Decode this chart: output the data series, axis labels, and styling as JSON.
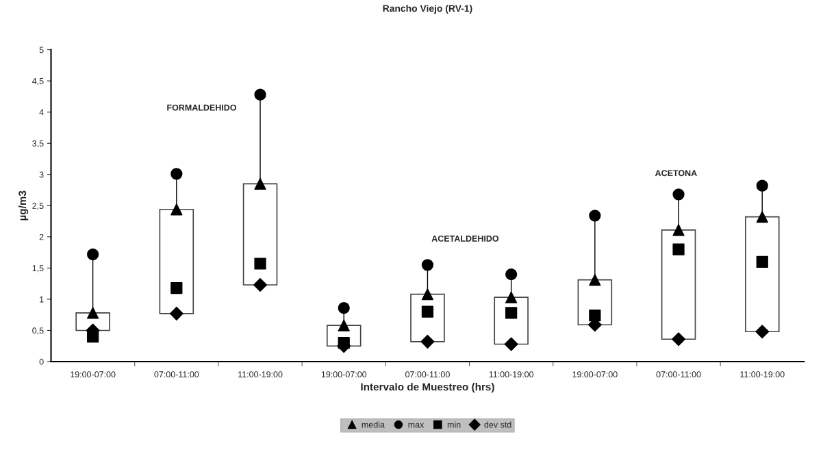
{
  "chart_data": {
    "type": "scatter",
    "title": "Rancho Viejo (RV-1)",
    "xlabel": "Intervalo de Muestreo (hrs)",
    "ylabel": "µg/m3",
    "categories": [
      "19:00-07:00",
      "07:00-11:00",
      "11:00-19:00",
      "19:00-07:00",
      "07:00-11:00",
      "11:00-19:00",
      "19:00-07:00",
      "07:00-11:00",
      "11:00-19:00"
    ],
    "series": [
      {
        "type": "bar",
        "color": "#ffffff",
        "base": [
          0.5,
          0.77,
          1.23,
          0.25,
          0.32,
          0.28,
          0.59,
          0.36,
          0.48
        ],
        "values": [
          0.28,
          1.67,
          1.62,
          0.33,
          0.76,
          0.75,
          0.72,
          1.75,
          1.84
        ]
      },
      {
        "name": "media",
        "marker": "triangle",
        "color": "#000000",
        "values": [
          0.78,
          2.44,
          2.85,
          0.58,
          1.08,
          1.03,
          1.31,
          2.11,
          2.32
        ]
      },
      {
        "name": "max",
        "marker": "circle",
        "color": "#000000",
        "values": [
          1.72,
          3.01,
          4.28,
          0.86,
          1.55,
          1.4,
          2.34,
          2.68,
          2.82
        ]
      },
      {
        "name": "min",
        "marker": "square",
        "color": "#000000",
        "values": [
          0.4,
          1.18,
          1.57,
          0.3,
          0.8,
          0.78,
          0.74,
          1.8,
          1.6
        ]
      },
      {
        "name": "dev std",
        "marker": "diamond",
        "color": "#000000",
        "values": [
          0.5,
          0.77,
          1.23,
          0.25,
          0.32,
          0.28,
          0.59,
          0.36,
          0.48
        ]
      }
    ],
    "ylim": [
      0,
      5
    ],
    "yticks": [
      0,
      {
        "value": 0.5,
        "label": "0,5"
      },
      1,
      {
        "value": 1.5,
        "label": "1,5"
      },
      2,
      {
        "value": 2.5,
        "label": "2,5"
      },
      3,
      {
        "value": 3.5,
        "label": "3,5"
      },
      4,
      {
        "value": 4.5,
        "label": "4,5"
      },
      5
    ],
    "annotations": [
      "FORMALDEHIDO",
      "ACETALDEHIDO",
      "ACETONA"
    ],
    "grid": false,
    "legend": "bottom"
  }
}
